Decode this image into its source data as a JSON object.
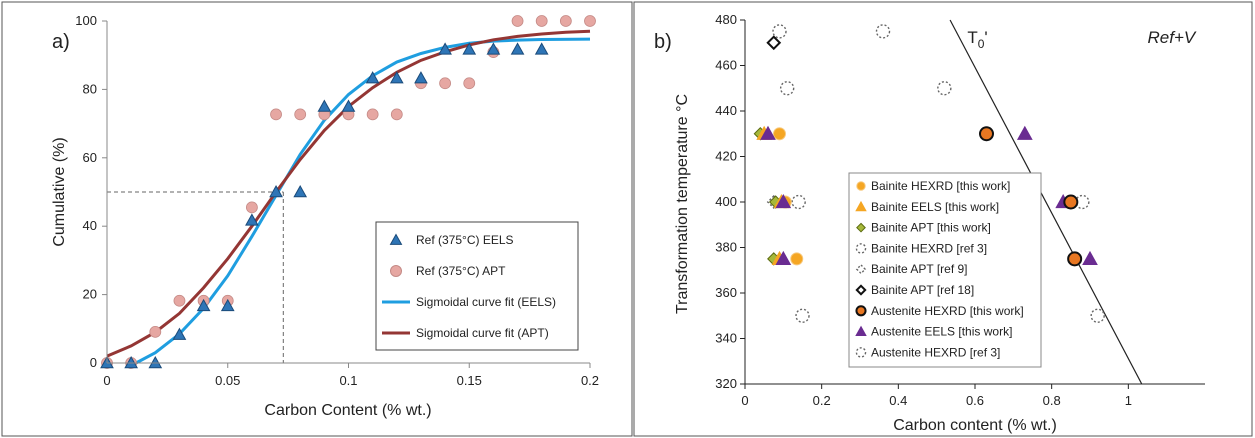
{
  "chart_data": [
    {
      "type": "scatter",
      "panel_label": "a)",
      "xlabel": "Carbon Content (% wt.)",
      "ylabel": "Cumulative (%)",
      "xlim": [
        0,
        0.2
      ],
      "ylim": [
        0,
        100
      ],
      "xticks": [
        0,
        0.05,
        0.1,
        0.15,
        0.2
      ],
      "xtick_labels": [
        "0",
        "0.05",
        "0.1",
        "0.15",
        "0.2"
      ],
      "yticks": [
        0,
        20,
        40,
        60,
        80,
        100
      ],
      "ytick_labels": [
        "0",
        "20",
        "40",
        "60",
        "80",
        "100"
      ],
      "grid": false,
      "legend_position": "bottom-right",
      "reference_line": {
        "x": 0.073,
        "y": 50,
        "style": "dashed"
      },
      "series": [
        {
          "name": "Ref (375°C) EELS",
          "marker": "triangle",
          "color": "#2e75b6",
          "points": [
            [
              0,
              0
            ],
            [
              0.01,
              0
            ],
            [
              0.02,
              0
            ],
            [
              0.03,
              8.3
            ],
            [
              0.04,
              16.7
            ],
            [
              0.05,
              16.7
            ],
            [
              0.06,
              41.7
            ],
            [
              0.07,
              50
            ],
            [
              0.08,
              50
            ],
            [
              0.09,
              75
            ],
            [
              0.1,
              75
            ],
            [
              0.11,
              83.3
            ],
            [
              0.12,
              83.3
            ],
            [
              0.13,
              83.3
            ],
            [
              0.14,
              91.7
            ],
            [
              0.15,
              91.7
            ],
            [
              0.16,
              91.7
            ],
            [
              0.17,
              91.7
            ],
            [
              0.18,
              91.7
            ]
          ]
        },
        {
          "name": "Ref (375°C) APT",
          "marker": "circle",
          "color": "#e6a7a2",
          "points": [
            [
              0,
              0
            ],
            [
              0.01,
              0
            ],
            [
              0.02,
              9.1
            ],
            [
              0.03,
              18.2
            ],
            [
              0.04,
              18.2
            ],
            [
              0.05,
              18.2
            ],
            [
              0.06,
              45.5
            ],
            [
              0.07,
              72.7
            ],
            [
              0.08,
              72.7
            ],
            [
              0.09,
              72.7
            ],
            [
              0.1,
              72.7
            ],
            [
              0.11,
              72.7
            ],
            [
              0.12,
              72.7
            ],
            [
              0.13,
              81.8
            ],
            [
              0.14,
              81.8
            ],
            [
              0.15,
              81.8
            ],
            [
              0.16,
              90.9
            ],
            [
              0.17,
              100
            ],
            [
              0.18,
              100
            ],
            [
              0.19,
              100
            ],
            [
              0.2,
              100
            ]
          ]
        },
        {
          "name": "Sigmoidal curve fit (EELS)",
          "type": "line",
          "color": "#1f9ee0",
          "points": [
            [
              0.012,
              0
            ],
            [
              0.02,
              3
            ],
            [
              0.03,
              8.5
            ],
            [
              0.04,
              16
            ],
            [
              0.05,
              25.5
            ],
            [
              0.06,
              37
            ],
            [
              0.07,
              49
            ],
            [
              0.08,
              61
            ],
            [
              0.09,
              71
            ],
            [
              0.1,
              78.5
            ],
            [
              0.11,
              84
            ],
            [
              0.12,
              88
            ],
            [
              0.13,
              90.5
            ],
            [
              0.14,
              92.3
            ],
            [
              0.15,
              93.5
            ],
            [
              0.16,
              94.1
            ],
            [
              0.17,
              94.4
            ],
            [
              0.18,
              94.6
            ],
            [
              0.2,
              94.7
            ]
          ]
        },
        {
          "name": "Sigmoidal curve fit (APT)",
          "type": "line",
          "color": "#943634",
          "points": [
            [
              0,
              2
            ],
            [
              0.01,
              5
            ],
            [
              0.02,
              9
            ],
            [
              0.03,
              14.5
            ],
            [
              0.04,
              22
            ],
            [
              0.05,
              30.5
            ],
            [
              0.06,
              40
            ],
            [
              0.07,
              50
            ],
            [
              0.08,
              59.5
            ],
            [
              0.09,
              68
            ],
            [
              0.1,
              75
            ],
            [
              0.11,
              80.5
            ],
            [
              0.12,
              85
            ],
            [
              0.13,
              88.5
            ],
            [
              0.14,
              91
            ],
            [
              0.15,
              93
            ],
            [
              0.16,
              94.5
            ],
            [
              0.17,
              95.5
            ],
            [
              0.18,
              96.2
            ],
            [
              0.19,
              96.7
            ],
            [
              0.2,
              97
            ]
          ]
        }
      ]
    },
    {
      "type": "scatter",
      "panel_label": "b)",
      "xlabel": "Carbon content (% wt.)",
      "ylabel": "Transformation temperature °C",
      "xlim": [
        0,
        1.2
      ],
      "ylim": [
        320,
        480
      ],
      "xticks": [
        0,
        0.2,
        0.4,
        0.6,
        0.8,
        1
      ],
      "xtick_labels": [
        "0",
        "0.2",
        "0.4",
        "0.6",
        "0.8",
        "1"
      ],
      "yticks": [
        320,
        340,
        360,
        380,
        400,
        420,
        440,
        460,
        480
      ],
      "ytick_labels": [
        "320",
        "340",
        "360",
        "380",
        "400",
        "420",
        "440",
        "460",
        "480"
      ],
      "grid": false,
      "legend_position": "center",
      "annotations": [
        {
          "text": "T",
          "sub": "0",
          "suffix": "'",
          "x": 0.58,
          "y": 470
        },
        {
          "text": "Ref+V",
          "x": 1.05,
          "y": 470,
          "italic": true
        }
      ],
      "t0_line": {
        "points": [
          [
            0.535,
            480
          ],
          [
            1.035,
            320
          ]
        ],
        "color": "#222222"
      },
      "series": [
        {
          "name": "Bainite HEXRD [this work]",
          "marker": "circle-filled",
          "color": "#f5a623",
          "points": [
            [
              0.09,
              430
            ],
            [
              0.105,
              400
            ],
            [
              0.135,
              375
            ]
          ]
        },
        {
          "name": "Bainite EELS [this work]",
          "marker": "triangle-filled",
          "color": "#f5a623",
          "points": [
            [
              0.05,
              430
            ],
            [
              0.095,
              400
            ],
            [
              0.09,
              375
            ]
          ]
        },
        {
          "name": "Bainite APT [this work]",
          "marker": "diamond-filled",
          "color": "#a6b83a",
          "points": [
            [
              0.04,
              430
            ],
            [
              0.08,
              400
            ],
            [
              0.075,
              375
            ]
          ]
        },
        {
          "name": "Bainite HEXRD [ref 3]",
          "marker": "circle-open-dashed",
          "color": "#666666",
          "points": [
            [
              0.09,
              475
            ],
            [
              0.36,
              475
            ],
            [
              0.11,
              450
            ],
            [
              0.52,
              450
            ],
            [
              0.14,
              400
            ],
            [
              0.88,
              400
            ],
            [
              0.15,
              350
            ],
            [
              0.92,
              350
            ]
          ]
        },
        {
          "name": "Bainite APT [ref 9]",
          "marker": "diamond-open-dashed",
          "color": "#666666",
          "points": [
            [
              0.075,
              400
            ]
          ]
        },
        {
          "name": "Bainite APT [ref 18]",
          "marker": "diamond-open",
          "color": "#111111",
          "points": [
            [
              0.075,
              470
            ]
          ]
        },
        {
          "name": "Austenite HEXRD [this work]",
          "marker": "circle-orange-black",
          "color": "#e87722",
          "points": [
            [
              0.63,
              430
            ],
            [
              0.85,
              400
            ],
            [
              0.86,
              375
            ]
          ]
        },
        {
          "name": "Austenite EELS [this work]",
          "marker": "triangle-filled",
          "color": "#6a2c91",
          "points": [
            [
              0.73,
              430
            ],
            [
              0.83,
              400
            ],
            [
              0.9,
              375
            ],
            [
              0.06,
              430
            ],
            [
              0.1,
              400
            ],
            [
              0.1,
              375
            ]
          ]
        },
        {
          "name": "Austenite HEXRD [ref 3]",
          "marker": "circle-open-dashed",
          "color": "#666666",
          "points": []
        }
      ]
    }
  ]
}
